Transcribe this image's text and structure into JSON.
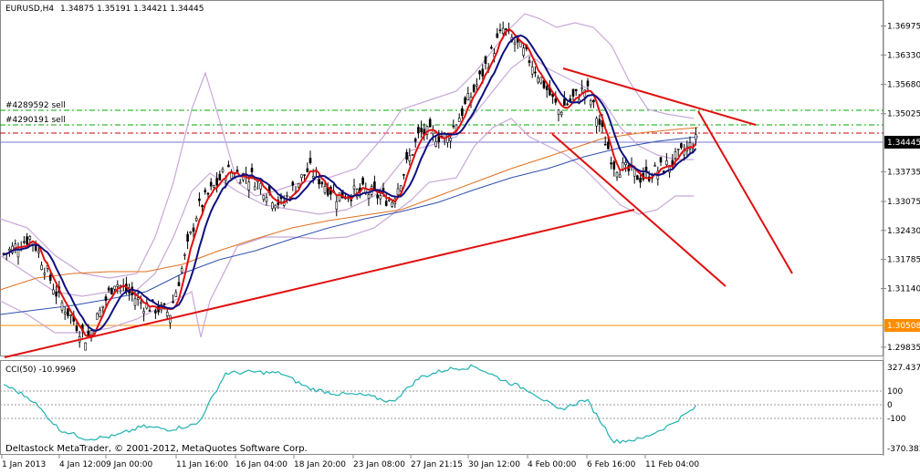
{
  "header": {
    "symbol": "EURUSD,H4",
    "ohlc": "1.34875 1.35191 1.34421 1.34445"
  },
  "order_labels": [
    "#4289592 sell",
    "#4290191 sell"
  ],
  "footer": {
    "copyright": "Deltastock MetaTrader, © 2001-2012, MetaQuotes Software Corp."
  },
  "price_axis": {
    "ticks": [
      "1.36975",
      "1.36330",
      "1.35680",
      "1.35025",
      "1.34445",
      "1.33735",
      "1.33075",
      "1.32430",
      "1.31785",
      "1.31140",
      "1.30508",
      "1.29835"
    ],
    "current_price": "1.34445",
    "level_price": "1.30508",
    "current_color": "#000000",
    "level_color": "#ff8c00"
  },
  "time_axis": {
    "ticks": [
      "1 Jan 2013",
      "4 Jan 12:00",
      "9 Jan 00:00",
      "11 Jan 16:00",
      "16 Jan 04:00",
      "18 Jan 20:00",
      "23 Jan 08:00",
      "27 Jan 21:15",
      "30 Jan 12:00",
      "4 Feb 00:00",
      "6 Feb 16:00",
      "11 Feb 04:00"
    ]
  },
  "indicator": {
    "label": "CCI(50) -10.9969",
    "ticks": [
      "327.4372",
      "100",
      "0",
      "-100",
      "-370.383"
    ]
  },
  "chart_data": {
    "type": "candlestick",
    "symbol": "EURUSD",
    "timeframe": "H4",
    "ylim": [
      1.2965,
      1.3735
    ],
    "horizontal_levels": [
      {
        "price": 1.3522,
        "color": "#00aa00",
        "style": "dash-dot"
      },
      {
        "price": 1.3503,
        "color": "#00aa00",
        "style": "dash-dot"
      },
      {
        "price": 1.3481,
        "color": "#cc0000",
        "style": "dash-dot"
      },
      {
        "price": 1.34445,
        "color": "#7777cc",
        "style": "solid"
      },
      {
        "price": 1.30508,
        "color": "#ff8c00",
        "style": "solid"
      }
    ],
    "price_path": [
      {
        "t": "1 Jan 2013",
        "close": 1.319
      },
      {
        "t": "2 Jan",
        "close": 1.323
      },
      {
        "t": "3 Jan",
        "close": 1.309
      },
      {
        "t": "4 Jan 12:00",
        "close": 1.3
      },
      {
        "t": "7 Jan",
        "close": 1.313
      },
      {
        "t": "8 Jan",
        "close": 1.308
      },
      {
        "t": "9 Jan 00:00",
        "close": 1.306
      },
      {
        "t": "10 Jan",
        "close": 1.329
      },
      {
        "t": "11 Jan 16:00",
        "close": 1.3375
      },
      {
        "t": "14 Jan",
        "close": 1.336
      },
      {
        "t": "16 Jan 04:00",
        "close": 1.33
      },
      {
        "t": "17 Jan",
        "close": 1.338
      },
      {
        "t": "18 Jan 20:00",
        "close": 1.332
      },
      {
        "t": "21 Jan",
        "close": 1.333
      },
      {
        "t": "23 Jan 08:00",
        "close": 1.331
      },
      {
        "t": "24 Jan",
        "close": 1.346
      },
      {
        "t": "27 Jan 21:15",
        "close": 1.345
      },
      {
        "t": "29 Jan",
        "close": 1.356
      },
      {
        "t": "30 Jan 12:00",
        "close": 1.369
      },
      {
        "t": "31 Jan",
        "close": 1.362
      },
      {
        "t": "4 Feb 00:00",
        "close": 1.351
      },
      {
        "t": "5 Feb",
        "close": 1.356
      },
      {
        "t": "6 Feb 16:00",
        "close": 1.339
      },
      {
        "t": "8 Feb",
        "close": 1.336
      },
      {
        "t": "11 Feb 04:00",
        "close": 1.339
      },
      {
        "t": "12 Feb",
        "close": 1.34445
      }
    ],
    "cci_values": [
      150,
      40,
      -180,
      -250,
      -230,
      -160,
      -180,
      -140,
      230,
      240,
      230,
      120,
      80,
      70,
      20,
      200,
      260,
      280,
      180,
      100,
      -40,
      40,
      -270,
      -250,
      -150,
      -11
    ]
  }
}
